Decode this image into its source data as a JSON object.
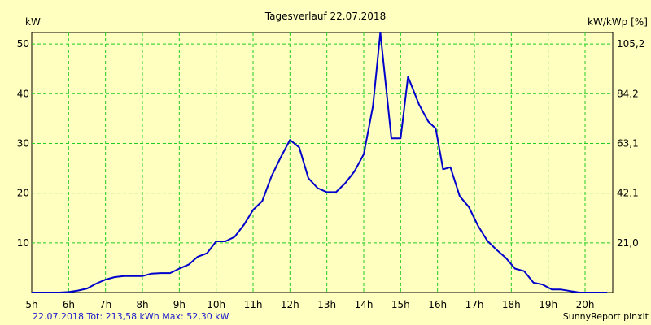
{
  "chart_data": {
    "type": "line",
    "title": "Tagesverlauf 22.07.2018",
    "ylabel_left": "kW",
    "ylabel_right": "kW/kWp [%]",
    "x_ticks": [
      "5h",
      "6h",
      "7h",
      "8h",
      "9h",
      "10h",
      "11h",
      "12h",
      "13h",
      "14h",
      "15h",
      "16h",
      "17h",
      "18h",
      "19h",
      "20h"
    ],
    "xlim": [
      5,
      20.75
    ],
    "ylim": [
      0,
      52.3
    ],
    "y_ticks_left": [
      "10",
      "20",
      "30",
      "40",
      "50"
    ],
    "y_ticks_left_values": [
      10,
      20,
      30,
      40,
      50
    ],
    "y_ticks_right": [
      "21,0",
      "42,1",
      "63,1",
      "84,2",
      "105,2"
    ],
    "grid": true,
    "series": [
      {
        "color": "#0000cc",
        "x": [
          5.0,
          5.25,
          5.5,
          5.75,
          6.0,
          6.25,
          6.5,
          6.75,
          7.0,
          7.25,
          7.5,
          7.75,
          8.0,
          8.25,
          8.5,
          8.75,
          9.0,
          9.25,
          9.5,
          9.75,
          10.0,
          10.25,
          10.5,
          10.75,
          11.0,
          11.25,
          11.5,
          11.75,
          12.0,
          12.25,
          12.5,
          12.75,
          13.0,
          13.25,
          13.5,
          13.75,
          14.0,
          14.25,
          14.45,
          14.75,
          15.0,
          15.2,
          15.5,
          15.75,
          15.95,
          16.15,
          16.35,
          16.6,
          16.85,
          17.1,
          17.35,
          17.6,
          17.85,
          18.1,
          18.35,
          18.6,
          18.85,
          19.1,
          19.35,
          19.6,
          19.85,
          20.1,
          20.35,
          20.6
        ],
        "y": [
          0,
          0,
          0,
          0,
          0.1,
          0.4,
          0.8,
          1.8,
          2.6,
          3.1,
          3.3,
          3.3,
          3.3,
          3.8,
          3.9,
          3.9,
          4.8,
          5.6,
          7.2,
          7.9,
          10.3,
          10.3,
          11.2,
          13.6,
          16.6,
          18.4,
          23.4,
          27.2,
          30.7,
          29.2,
          23.0,
          21.0,
          20.2,
          20.2,
          22.0,
          24.4,
          27.8,
          37.5,
          52.3,
          31.0,
          31.0,
          43.4,
          37.8,
          34.4,
          33.0,
          24.8,
          25.2,
          19.4,
          17.2,
          13.4,
          10.4,
          8.6,
          7.0,
          4.8,
          4.3,
          2.0,
          1.6,
          0.6,
          0.6,
          0.3,
          0,
          0,
          0,
          0
        ]
      }
    ]
  },
  "footer": {
    "left": "22.07.2018 Tot: 213,58 kWh Max: 52,30 kW",
    "right": "SunnyReport pinxit"
  }
}
